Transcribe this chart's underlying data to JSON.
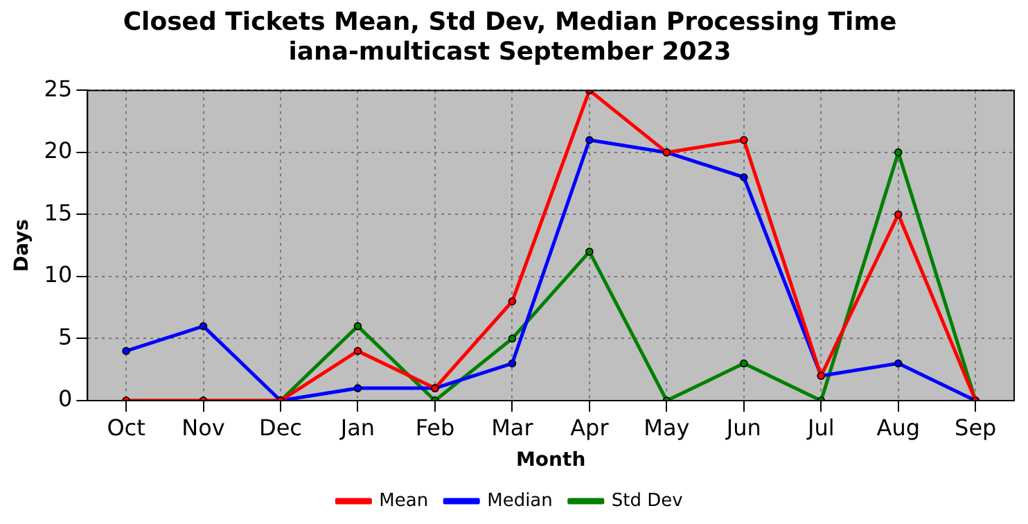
{
  "chart_data": {
    "type": "line",
    "title": "Closed Tickets Mean, Std Dev, Median Processing Time",
    "subtitle": "iana-multicast September 2023",
    "xlabel": "Month",
    "ylabel": "Days",
    "categories": [
      "Oct",
      "Nov",
      "Dec",
      "Jan",
      "Feb",
      "Mar",
      "Apr",
      "May",
      "Jun",
      "Jul",
      "Aug",
      "Sep"
    ],
    "series": [
      {
        "name": "Mean",
        "color": "#ff0000",
        "values": [
          0,
          0,
          0,
          4,
          1,
          8,
          25,
          20,
          21,
          2,
          15,
          0
        ]
      },
      {
        "name": "Median",
        "color": "#0000ff",
        "values": [
          4,
          6,
          0,
          1,
          1,
          3,
          21,
          20,
          18,
          2,
          3,
          0
        ]
      },
      {
        "name": "Std Dev",
        "color": "#008000",
        "values": [
          0,
          0,
          0,
          6,
          0,
          5,
          12,
          0,
          3,
          0,
          20,
          0
        ]
      }
    ],
    "ylim": [
      0,
      25
    ],
    "yticks": [
      0,
      5,
      10,
      15,
      20,
      25
    ],
    "grid": true,
    "legend": "bottom",
    "marker": "circle",
    "line_style": "solid"
  }
}
